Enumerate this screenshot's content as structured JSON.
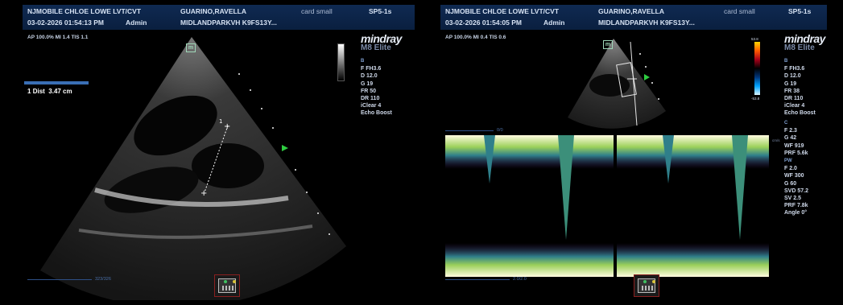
{
  "left": {
    "header": {
      "patient": "NJMOBILE CHLOE LOWE LVT/CVT",
      "operator_name": "GUARINO,RAVELLA",
      "preset": "card small",
      "probe": "SP5-1s",
      "datetime": "03-02-2026 01:54:13 PM",
      "user": "Admin",
      "institution": "MIDLANDPARKVH K9FS13Y..."
    },
    "acoustic": "AP 100.0%  MI 1.4  TIS 1.1",
    "brand": {
      "logo": "mindray",
      "model": "M8 Elite"
    },
    "mode_label": "B",
    "params": [
      "F FH3.6",
      "D 12.0",
      "G 19",
      "FR 50",
      "DR 110",
      "iClear 4",
      "Echo Boost"
    ],
    "measurement": {
      "index": "1",
      "label": "Dist",
      "value": "3.47 cm"
    },
    "frame_counter": "323/326",
    "m_marker": "m"
  },
  "right": {
    "header": {
      "patient": "NJMOBILE CHLOE LOWE LVT/CVT",
      "operator_name": "GUARINO,RAVELLA",
      "preset": "card small",
      "probe": "SP5-1s",
      "datetime": "03-02-2026 01:54:05 PM",
      "user": "Admin",
      "institution": "MIDLANDPARKVH K9FS13Y..."
    },
    "acoustic": "AP 100.0%  MI 0.4  TIS 0.6",
    "brand": {
      "logo": "mindray",
      "model": "M8 Elite"
    },
    "colorbar": {
      "top": "53.8",
      "bottom": "-53.8"
    },
    "params_b": {
      "mode": "B",
      "items": [
        "F FH3.6",
        "D 12.0",
        "G 19",
        "FR 38",
        "DR 110",
        "iClear 4",
        "Echo Boost"
      ]
    },
    "params_c": {
      "mode": "C",
      "items": [
        "F 2.3",
        "G 42",
        "WF 919",
        "PRF 5.6k"
      ]
    },
    "params_pw": {
      "mode": "PW",
      "items": [
        "F 2.0",
        "WF 300",
        "G 60",
        "SVD 57.2",
        "SV 2.5",
        "PRF 7.8k",
        "Angle 0°"
      ]
    },
    "doppler_top_counter": "0/0",
    "doppler_unit": "cm/s",
    "frame_counter": "2.0/2.0",
    "m_marker": "m"
  },
  "colors": {
    "header_bg": "#0f2a52",
    "accent_blue": "#3a6fb5",
    "marker_green": "#2ecc40"
  }
}
